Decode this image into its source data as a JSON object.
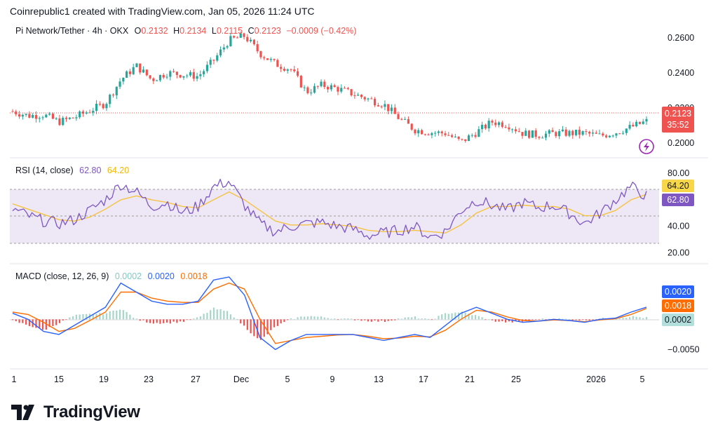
{
  "header": {
    "text": "Coinrepublic1 created with TradingView.com, Jan 05, 2026 11:24 UTC"
  },
  "price_pane": {
    "symbol": "Pi Network/Tether · 4h · OKX",
    "open_label": "O",
    "open": "0.2132",
    "high_label": "H",
    "high": "0.2134",
    "low_label": "L",
    "low": "0.2115",
    "close_label": "C",
    "close": "0.2123",
    "change": "−0.0009 (−0.42%)",
    "current_price_tag": "0.2123",
    "countdown_tag": "35:52",
    "axis_ticks": [
      "0.2600",
      "0.2400",
      "0.2200",
      "0.2000"
    ]
  },
  "rsi_pane": {
    "title": "RSI (14, close)",
    "rsi_value": "62.80",
    "ma_value": "64.20",
    "axis_ticks": [
      "80.00",
      "40.00",
      "20.00"
    ]
  },
  "macd_pane": {
    "title": "MACD (close, 12, 26, 9)",
    "hist_value": "0.0002",
    "macd_value": "0.0020",
    "signal_value": "0.0018",
    "axis_ticks": [
      "−0.0050"
    ]
  },
  "x_axis": {
    "labels": [
      "1",
      "15",
      "19",
      "23",
      "27",
      "Dec",
      "5",
      "9",
      "13",
      "17",
      "21",
      "25",
      "2026",
      "5"
    ]
  },
  "colors": {
    "up": "#26a69a",
    "down": "#ef5350",
    "rsi": "#7e57c2",
    "rsi_ma": "#f5c342",
    "macd": "#2962ff",
    "signal": "#ff6d00",
    "hist_up": "#a5d6c8",
    "hist_down": "#ef5350"
  },
  "logo": {
    "text": "TradingView"
  },
  "chart_data": {
    "type": "line",
    "x_labels": [
      "1",
      "15",
      "19",
      "23",
      "27",
      "Dec",
      "5",
      "9",
      "13",
      "17",
      "21",
      "25",
      "2026",
      "5"
    ],
    "price": {
      "ylim": [
        0.1975,
        0.2695
      ],
      "close": [
        0.218,
        0.2155,
        0.216,
        0.212,
        0.2145,
        0.2185,
        0.2225,
        0.236,
        0.244,
        0.236,
        0.24,
        0.239,
        0.238,
        0.247,
        0.2585,
        0.261,
        0.251,
        0.245,
        0.242,
        0.229,
        0.233,
        0.231,
        0.228,
        0.225,
        0.222,
        0.214,
        0.2075,
        0.206,
        0.2055,
        0.2005,
        0.206,
        0.212,
        0.2105,
        0.2055,
        0.2045,
        0.2055,
        0.2055,
        0.2055,
        0.204,
        0.206,
        0.209,
        0.2123
      ]
    },
    "rsi": {
      "ylim": [
        15,
        88
      ],
      "rsi": [
        53,
        48,
        44,
        42,
        45,
        52,
        60,
        72,
        66,
        55,
        58,
        50,
        55,
        70,
        74,
        56,
        42,
        36,
        40,
        42,
        43,
        40,
        38,
        33,
        35,
        37,
        40,
        32,
        36,
        52,
        60,
        56,
        52,
        58,
        54,
        56,
        50,
        42,
        50,
        60,
        70,
        62.8
      ],
      "ma": [
        57,
        53,
        49,
        45,
        44,
        47,
        53,
        60,
        63,
        60,
        58,
        55,
        54,
        60,
        66,
        60,
        52,
        44,
        41,
        41,
        42,
        41,
        40,
        37,
        36,
        36,
        37,
        36,
        35,
        41,
        50,
        55,
        55,
        56,
        55,
        55,
        53,
        48,
        48,
        52,
        60,
        64.2
      ]
    },
    "macd": {
      "ylim": [
        -0.0075,
        0.0085
      ],
      "macd": [
        0.001,
        0.0,
        -0.002,
        -0.0025,
        -0.001,
        0.0005,
        0.002,
        0.006,
        0.0045,
        0.003,
        0.0025,
        0.0025,
        0.003,
        0.0065,
        0.007,
        0.004,
        -0.003,
        -0.005,
        -0.0035,
        -0.0025,
        -0.0025,
        -0.0025,
        -0.0025,
        -0.003,
        -0.0035,
        -0.003,
        -0.0025,
        -0.003,
        -0.001,
        0.001,
        0.002,
        0.001,
        0.0,
        -0.0005,
        -0.0003,
        0.0,
        -0.0002,
        -0.0005,
        0.0,
        0.0002,
        0.0012,
        0.002
      ],
      "signal": [
        0.0012,
        0.0008,
        -0.0005,
        -0.002,
        -0.0015,
        -0.0002,
        0.0012,
        0.0045,
        0.0045,
        0.0035,
        0.003,
        0.0028,
        0.0028,
        0.005,
        0.006,
        0.005,
        0.0,
        -0.004,
        -0.0035,
        -0.003,
        -0.0028,
        -0.0026,
        -0.0025,
        -0.0028,
        -0.0032,
        -0.0031,
        -0.0028,
        -0.0029,
        -0.0018,
        0.0,
        0.0015,
        0.0012,
        0.0004,
        -0.0002,
        -0.0003,
        -0.0001,
        -0.0002,
        -0.0004,
        -0.0001,
        0.0001,
        0.0008,
        0.0018
      ]
    }
  }
}
